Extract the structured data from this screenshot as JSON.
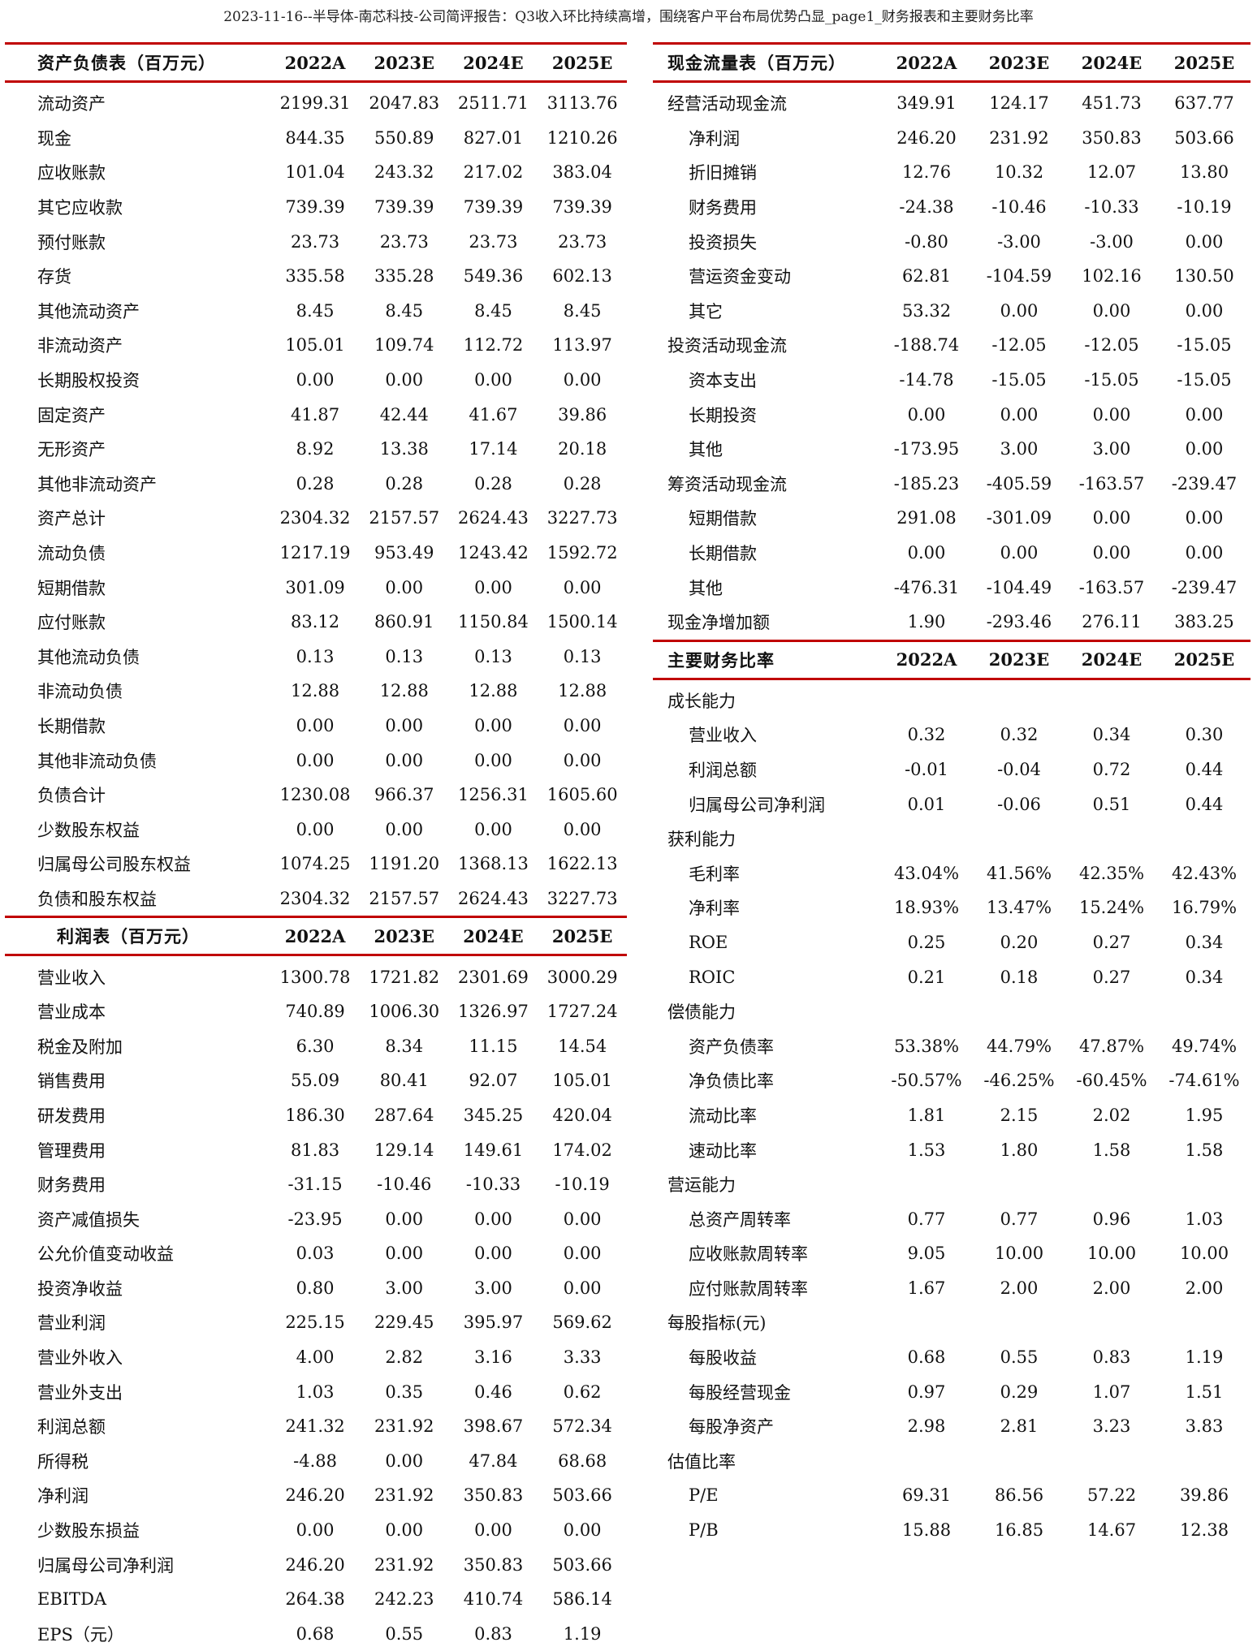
{
  "title": "2023-11-16--半导体-南芯科技-公司简评报告：Q3收入环比持续高增，围绕客户平台布局优势凸显_page1_财务报表和主要财务比率",
  "accent_color": "#c00000",
  "balance_sheet": {
    "header": "资产负债表（百万元）",
    "years": [
      "2022A",
      "2023E",
      "2024E",
      "2025E"
    ],
    "rows": [
      {
        "label": "流动资产",
        "values": [
          "2199.31",
          "2047.83",
          "2511.71",
          "3113.76"
        ]
      },
      {
        "label": "现金",
        "values": [
          "844.35",
          "550.89",
          "827.01",
          "1210.26"
        ]
      },
      {
        "label": "应收账款",
        "values": [
          "101.04",
          "243.32",
          "217.02",
          "383.04"
        ]
      },
      {
        "label": "其它应收款",
        "values": [
          "739.39",
          "739.39",
          "739.39",
          "739.39"
        ]
      },
      {
        "label": "预付账款",
        "values": [
          "23.73",
          "23.73",
          "23.73",
          "23.73"
        ]
      },
      {
        "label": "存货",
        "values": [
          "335.58",
          "335.28",
          "549.36",
          "602.13"
        ]
      },
      {
        "label": "其他流动资产",
        "values": [
          "8.45",
          "8.45",
          "8.45",
          "8.45"
        ]
      },
      {
        "label": "非流动资产",
        "values": [
          "105.01",
          "109.74",
          "112.72",
          "113.97"
        ]
      },
      {
        "label": "长期股权投资",
        "values": [
          "0.00",
          "0.00",
          "0.00",
          "0.00"
        ]
      },
      {
        "label": "固定资产",
        "values": [
          "41.87",
          "42.44",
          "41.67",
          "39.86"
        ]
      },
      {
        "label": "无形资产",
        "values": [
          "8.92",
          "13.38",
          "17.14",
          "20.18"
        ]
      },
      {
        "label": "其他非流动资产",
        "values": [
          "0.28",
          "0.28",
          "0.28",
          "0.28"
        ]
      },
      {
        "label": "资产总计",
        "values": [
          "2304.32",
          "2157.57",
          "2624.43",
          "3227.73"
        ]
      },
      {
        "label": "流动负债",
        "values": [
          "1217.19",
          "953.49",
          "1243.42",
          "1592.72"
        ]
      },
      {
        "label": "短期借款",
        "values": [
          "301.09",
          "0.00",
          "0.00",
          "0.00"
        ]
      },
      {
        "label": "应付账款",
        "values": [
          "83.12",
          "860.91",
          "1150.84",
          "1500.14"
        ]
      },
      {
        "label": "其他流动负债",
        "values": [
          "0.13",
          "0.13",
          "0.13",
          "0.13"
        ]
      },
      {
        "label": "非流动负债",
        "values": [
          "12.88",
          "12.88",
          "12.88",
          "12.88"
        ]
      },
      {
        "label": "长期借款",
        "values": [
          "0.00",
          "0.00",
          "0.00",
          "0.00"
        ]
      },
      {
        "label": "其他非流动负债",
        "values": [
          "0.00",
          "0.00",
          "0.00",
          "0.00"
        ]
      },
      {
        "label": "负债合计",
        "values": [
          "1230.08",
          "966.37",
          "1256.31",
          "1605.60"
        ]
      },
      {
        "label": "少数股东权益",
        "values": [
          "0.00",
          "0.00",
          "0.00",
          "0.00"
        ]
      },
      {
        "label": "归属母公司股东权益",
        "values": [
          "1074.25",
          "1191.20",
          "1368.13",
          "1622.13"
        ]
      },
      {
        "label": "负债和股东权益",
        "values": [
          "2304.32",
          "2157.57",
          "2624.43",
          "3227.73"
        ]
      }
    ]
  },
  "income_statement": {
    "header": "利润表（百万元）",
    "years": [
      "2022A",
      "2023E",
      "2024E",
      "2025E"
    ],
    "rows": [
      {
        "label": "营业收入",
        "values": [
          "1300.78",
          "1721.82",
          "2301.69",
          "3000.29"
        ]
      },
      {
        "label": "营业成本",
        "values": [
          "740.89",
          "1006.30",
          "1326.97",
          "1727.24"
        ]
      },
      {
        "label": "税金及附加",
        "values": [
          "6.30",
          "8.34",
          "11.15",
          "14.54"
        ]
      },
      {
        "label": "销售费用",
        "values": [
          "55.09",
          "80.41",
          "92.07",
          "105.01"
        ]
      },
      {
        "label": "研发费用",
        "values": [
          "186.30",
          "287.64",
          "345.25",
          "420.04"
        ]
      },
      {
        "label": "管理费用",
        "values": [
          "81.83",
          "129.14",
          "149.61",
          "174.02"
        ]
      },
      {
        "label": "财务费用",
        "values": [
          "-31.15",
          "-10.46",
          "-10.33",
          "-10.19"
        ]
      },
      {
        "label": "资产减值损失",
        "values": [
          "-23.95",
          "0.00",
          "0.00",
          "0.00"
        ]
      },
      {
        "label": "公允价值变动收益",
        "values": [
          "0.03",
          "0.00",
          "0.00",
          "0.00"
        ]
      },
      {
        "label": "投资净收益",
        "values": [
          "0.80",
          "3.00",
          "3.00",
          "0.00"
        ]
      },
      {
        "label": "营业利润",
        "values": [
          "225.15",
          "229.45",
          "395.97",
          "569.62"
        ]
      },
      {
        "label": "营业外收入",
        "values": [
          "4.00",
          "2.82",
          "3.16",
          "3.33"
        ]
      },
      {
        "label": "营业外支出",
        "values": [
          "1.03",
          "0.35",
          "0.46",
          "0.62"
        ]
      },
      {
        "label": "利润总额",
        "values": [
          "241.32",
          "231.92",
          "398.67",
          "572.34"
        ]
      },
      {
        "label": "所得税",
        "values": [
          "-4.88",
          "0.00",
          "47.84",
          "68.68"
        ]
      },
      {
        "label": "净利润",
        "values": [
          "246.20",
          "231.92",
          "350.83",
          "503.66"
        ]
      },
      {
        "label": "少数股东损益",
        "values": [
          "0.00",
          "0.00",
          "0.00",
          "0.00"
        ]
      },
      {
        "label": "归属母公司净利润",
        "values": [
          "246.20",
          "231.92",
          "350.83",
          "503.66"
        ]
      },
      {
        "label": "EBITDA",
        "values": [
          "264.38",
          "242.23",
          "410.74",
          "586.14"
        ]
      },
      {
        "label": "EPS（元）",
        "values": [
          "0.68",
          "0.55",
          "0.83",
          "1.19"
        ]
      }
    ]
  },
  "cash_flow": {
    "header": "现金流量表（百万元）",
    "years": [
      "2022A",
      "2023E",
      "2024E",
      "2025E"
    ],
    "rows": [
      {
        "label": "经营活动现金流",
        "sub": false,
        "values": [
          "349.91",
          "124.17",
          "451.73",
          "637.77"
        ]
      },
      {
        "label": "净利润",
        "sub": true,
        "values": [
          "246.20",
          "231.92",
          "350.83",
          "503.66"
        ]
      },
      {
        "label": "折旧摊销",
        "sub": true,
        "values": [
          "12.76",
          "10.32",
          "12.07",
          "13.80"
        ]
      },
      {
        "label": "财务费用",
        "sub": true,
        "values": [
          "-24.38",
          "-10.46",
          "-10.33",
          "-10.19"
        ]
      },
      {
        "label": "投资损失",
        "sub": true,
        "values": [
          "-0.80",
          "-3.00",
          "-3.00",
          "0.00"
        ]
      },
      {
        "label": "营运资金变动",
        "sub": true,
        "values": [
          "62.81",
          "-104.59",
          "102.16",
          "130.50"
        ]
      },
      {
        "label": "其它",
        "sub": true,
        "values": [
          "53.32",
          "0.00",
          "0.00",
          "0.00"
        ]
      },
      {
        "label": "投资活动现金流",
        "sub": false,
        "values": [
          "-188.74",
          "-12.05",
          "-12.05",
          "-15.05"
        ]
      },
      {
        "label": "资本支出",
        "sub": true,
        "values": [
          "-14.78",
          "-15.05",
          "-15.05",
          "-15.05"
        ]
      },
      {
        "label": "长期投资",
        "sub": true,
        "values": [
          "0.00",
          "0.00",
          "0.00",
          "0.00"
        ]
      },
      {
        "label": "其他",
        "sub": true,
        "values": [
          "-173.95",
          "3.00",
          "3.00",
          "0.00"
        ]
      },
      {
        "label": "筹资活动现金流",
        "sub": false,
        "values": [
          "-185.23",
          "-405.59",
          "-163.57",
          "-239.47"
        ]
      },
      {
        "label": "短期借款",
        "sub": true,
        "values": [
          "291.08",
          "-301.09",
          "0.00",
          "0.00"
        ]
      },
      {
        "label": "长期借款",
        "sub": true,
        "values": [
          "0.00",
          "0.00",
          "0.00",
          "0.00"
        ]
      },
      {
        "label": "其他",
        "sub": true,
        "values": [
          "-476.31",
          "-104.49",
          "-163.57",
          "-239.47"
        ]
      },
      {
        "label": "现金净增加额",
        "sub": false,
        "values": [
          "1.90",
          "-293.46",
          "276.11",
          "383.25"
        ]
      }
    ]
  },
  "ratios": {
    "header": "主要财务比率",
    "years": [
      "2022A",
      "2023E",
      "2024E",
      "2025E"
    ],
    "rows": [
      {
        "label": "成长能力",
        "sub": false,
        "values": [
          "",
          "",
          "",
          ""
        ]
      },
      {
        "label": "营业收入",
        "sub": true,
        "values": [
          "0.32",
          "0.32",
          "0.34",
          "0.30"
        ]
      },
      {
        "label": "利润总额",
        "sub": true,
        "values": [
          "-0.01",
          "-0.04",
          "0.72",
          "0.44"
        ]
      },
      {
        "label": "归属母公司净利润",
        "sub": true,
        "values": [
          "0.01",
          "-0.06",
          "0.51",
          "0.44"
        ]
      },
      {
        "label": "获利能力",
        "sub": false,
        "values": [
          "",
          "",
          "",
          ""
        ]
      },
      {
        "label": "毛利率",
        "sub": true,
        "values": [
          "43.04%",
          "41.56%",
          "42.35%",
          "42.43%"
        ]
      },
      {
        "label": "净利率",
        "sub": true,
        "values": [
          "18.93%",
          "13.47%",
          "15.24%",
          "16.79%"
        ]
      },
      {
        "label": "ROE",
        "sub": true,
        "values": [
          "0.25",
          "0.20",
          "0.27",
          "0.34"
        ]
      },
      {
        "label": "ROIC",
        "sub": true,
        "values": [
          "0.21",
          "0.18",
          "0.27",
          "0.34"
        ]
      },
      {
        "label": "偿债能力",
        "sub": false,
        "values": [
          "",
          "",
          "",
          ""
        ]
      },
      {
        "label": "资产负债率",
        "sub": true,
        "values": [
          "53.38%",
          "44.79%",
          "47.87%",
          "49.74%"
        ]
      },
      {
        "label": "净负债比率",
        "sub": true,
        "values": [
          "-50.57%",
          "-46.25%",
          "-60.45%",
          "-74.61%"
        ]
      },
      {
        "label": "流动比率",
        "sub": true,
        "values": [
          "1.81",
          "2.15",
          "2.02",
          "1.95"
        ]
      },
      {
        "label": "速动比率",
        "sub": true,
        "values": [
          "1.53",
          "1.80",
          "1.58",
          "1.58"
        ]
      },
      {
        "label": "营运能力",
        "sub": false,
        "values": [
          "",
          "",
          "",
          ""
        ]
      },
      {
        "label": "总资产周转率",
        "sub": true,
        "values": [
          "0.77",
          "0.77",
          "0.96",
          "1.03"
        ]
      },
      {
        "label": "应收账款周转率",
        "sub": true,
        "values": [
          "9.05",
          "10.00",
          "10.00",
          "10.00"
        ]
      },
      {
        "label": "应付账款周转率",
        "sub": true,
        "values": [
          "1.67",
          "2.00",
          "2.00",
          "2.00"
        ]
      },
      {
        "label": "每股指标(元)",
        "sub": false,
        "values": [
          "",
          "",
          "",
          ""
        ]
      },
      {
        "label": "每股收益",
        "sub": true,
        "values": [
          "0.68",
          "0.55",
          "0.83",
          "1.19"
        ]
      },
      {
        "label": "每股经营现金",
        "sub": true,
        "values": [
          "0.97",
          "0.29",
          "1.07",
          "1.51"
        ]
      },
      {
        "label": "每股净资产",
        "sub": true,
        "values": [
          "2.98",
          "2.81",
          "3.23",
          "3.83"
        ]
      },
      {
        "label": "估值比率",
        "sub": false,
        "values": [
          "",
          "",
          "",
          ""
        ]
      },
      {
        "label": "P/E",
        "sub": true,
        "values": [
          "69.31",
          "86.56",
          "57.22",
          "39.86"
        ]
      },
      {
        "label": "P/B",
        "sub": true,
        "values": [
          "15.88",
          "16.85",
          "14.67",
          "12.38"
        ]
      }
    ]
  }
}
